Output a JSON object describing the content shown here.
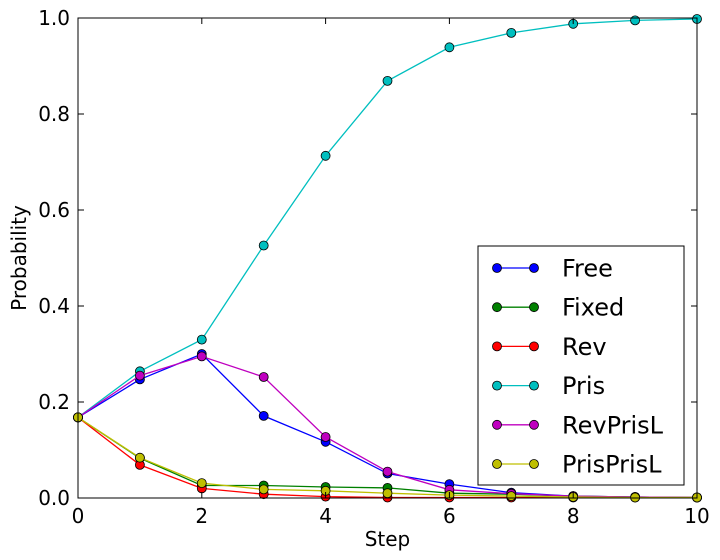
{
  "chart_data": {
    "type": "line",
    "xlabel": "Step",
    "ylabel": "Probability",
    "xlim": [
      0,
      10
    ],
    "ylim": [
      0,
      1.0
    ],
    "xticks": [
      "0",
      "2",
      "4",
      "6",
      "8",
      "10"
    ],
    "yticks": [
      "0.0",
      "0.2",
      "0.4",
      "0.6",
      "0.8",
      "1.0"
    ],
    "grid": false,
    "legend_position": "lower-right",
    "x": [
      0,
      1,
      2,
      3,
      4,
      5,
      6,
      7,
      8,
      9,
      10
    ],
    "series": [
      {
        "name": "Free",
        "color": "#0000ff",
        "values": [
          0.168,
          0.247,
          0.3,
          0.171,
          0.117,
          0.051,
          0.029,
          0.011,
          0.004,
          0.002,
          0.001
        ]
      },
      {
        "name": "Fixed",
        "color": "#008000",
        "values": [
          0.168,
          0.083,
          0.026,
          0.026,
          0.023,
          0.021,
          0.01,
          0.008,
          0.004,
          0.002,
          0.001
        ]
      },
      {
        "name": "Rev",
        "color": "#ff0000",
        "values": [
          0.168,
          0.069,
          0.02,
          0.008,
          0.003,
          0.001,
          0.001,
          0.001,
          0.001,
          0.001,
          0.001
        ]
      },
      {
        "name": "Pris",
        "color": "#00bfbf",
        "values": [
          0.168,
          0.264,
          0.33,
          0.526,
          0.713,
          0.869,
          0.939,
          0.969,
          0.988,
          0.995,
          0.998
        ]
      },
      {
        "name": "RevPrisL",
        "color": "#bf00bf",
        "values": [
          0.168,
          0.255,
          0.295,
          0.252,
          0.127,
          0.055,
          0.017,
          0.009,
          0.004,
          0.002,
          0.001
        ]
      },
      {
        "name": "PrisPrisL",
        "color": "#bfbf00",
        "values": [
          0.168,
          0.084,
          0.031,
          0.018,
          0.015,
          0.01,
          0.006,
          0.004,
          0.002,
          0.001,
          0.001
        ]
      }
    ]
  }
}
